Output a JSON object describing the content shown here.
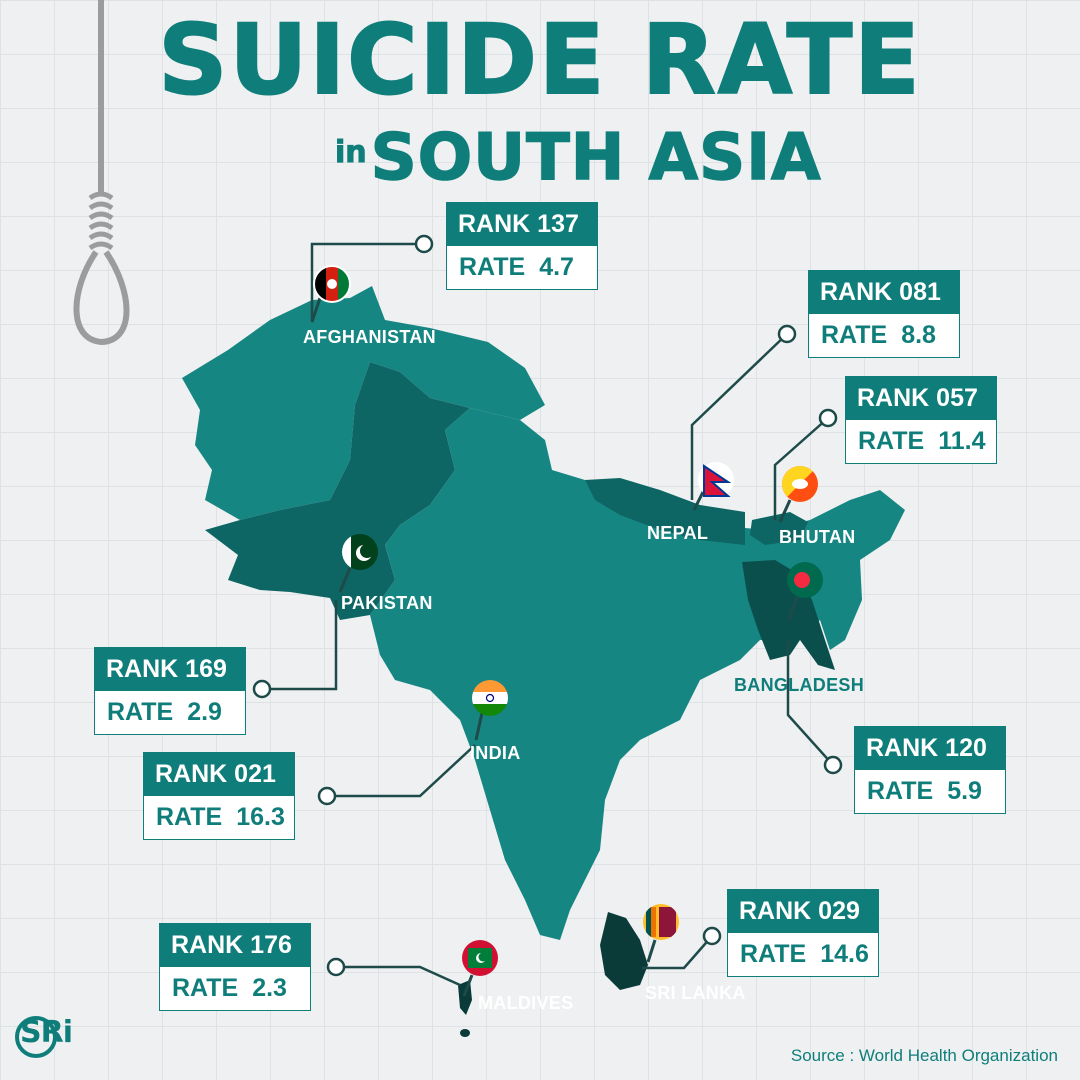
{
  "title": {
    "line1": "SUICIDE RATE",
    "prefix": "in",
    "line2": "SOUTH ASIA"
  },
  "countries": [
    {
      "name": "AFGHANISTAN",
      "rank_label": "RANK",
      "rank": "137",
      "rate_label": "RATE",
      "rate": "4.7"
    },
    {
      "name": "NEPAL",
      "rank_label": "RANK",
      "rank": "081",
      "rate_label": "RATE",
      "rate": "8.8"
    },
    {
      "name": "BHUTAN",
      "rank_label": "RANK",
      "rank": "057",
      "rate_label": "RATE",
      "rate": "11.4"
    },
    {
      "name": "PAKISTAN",
      "rank_label": "RANK",
      "rank": "169",
      "rate_label": "RATE",
      "rate": "2.9"
    },
    {
      "name": "INDIA",
      "rank_label": "RANK",
      "rank": "021",
      "rate_label": "RATE",
      "rate": "16.3"
    },
    {
      "name": "BANGLADESH",
      "rank_label": "RANK",
      "rank": "120",
      "rate_label": "RATE",
      "rate": "5.9"
    },
    {
      "name": "MALDIVES",
      "rank_label": "RANK",
      "rank": "176",
      "rate_label": "RATE",
      "rate": "2.3"
    },
    {
      "name": "SRI LANKA",
      "rank_label": "RANK",
      "rank": "029",
      "rate_label": "RATE",
      "rate": "14.6"
    }
  ],
  "source": "Source : World Health Organization",
  "logo": "SRi",
  "colors": {
    "teal": "#0f7e7b",
    "dark_teal": "#0b605d",
    "land": "#168683",
    "background": "#eef0f1",
    "rope": "#9a9c9d"
  },
  "icons": [
    "noose-icon",
    "afghanistan-flag-icon",
    "nepal-flag-icon",
    "bhutan-flag-icon",
    "pakistan-flag-icon",
    "india-flag-icon",
    "bangladesh-flag-icon",
    "maldives-flag-icon",
    "sri-lanka-flag-icon"
  ]
}
